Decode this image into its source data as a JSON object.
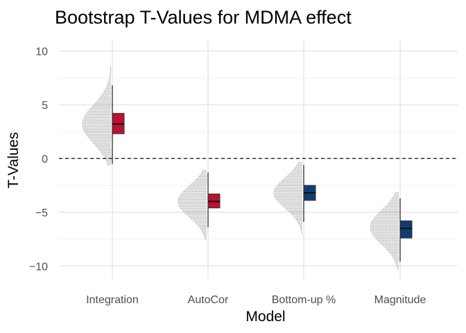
{
  "chart_data": {
    "type": "raincloud",
    "title": "Bootstrap T-Values for MDMA effect",
    "xlabel": "Model",
    "ylabel": "T-Values",
    "ylim": [
      -11.2,
      11
    ],
    "yticks": [
      -10,
      -5,
      0,
      5,
      10
    ],
    "reference_line": {
      "y": 0,
      "style": "dashed"
    },
    "grid": true,
    "categories": [
      "Integration",
      "AutoCor",
      "Bottom-up %",
      "Magnitude"
    ],
    "groups": [
      {
        "category": "Integration",
        "box": {
          "min": -0.5,
          "q1": 2.3,
          "median": 3.2,
          "q3": 4.2,
          "max": 6.8
        },
        "distribution": {
          "min": -0.6,
          "max": 8.5,
          "peak": 3.2
        },
        "color": "#bb1133"
      },
      {
        "category": "AutoCor",
        "box": {
          "min": -6.4,
          "q1": -4.6,
          "median": -4.0,
          "q3": -3.3,
          "max": -1.3
        },
        "distribution": {
          "min": -7.5,
          "max": -1.1,
          "peak": -4.0
        },
        "color": "#bb1133"
      },
      {
        "category": "Bottom-up %",
        "box": {
          "min": -5.9,
          "q1": -3.9,
          "median": -3.2,
          "q3": -2.5,
          "max": -0.6
        },
        "distribution": {
          "min": -7.0,
          "max": -0.4,
          "peak": -3.2
        },
        "color": "#123c6e"
      },
      {
        "category": "Magnitude",
        "box": {
          "min": -9.6,
          "q1": -7.4,
          "median": -6.5,
          "q3": -5.8,
          "max": -3.7
        },
        "distribution": {
          "min": -10.4,
          "max": -3.2,
          "peak": -6.4
        },
        "color": "#123c6e"
      }
    ]
  }
}
